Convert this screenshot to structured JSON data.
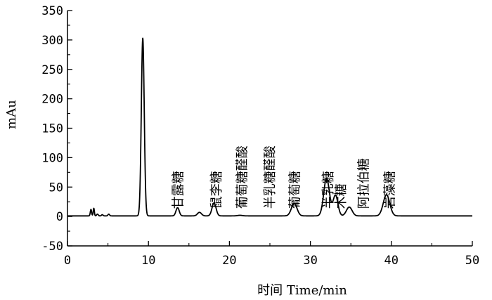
{
  "chart_data": {
    "type": "line",
    "title": "",
    "xlabel": "时间 Time/min",
    "ylabel": "mAu",
    "xlim": [
      0,
      50
    ],
    "ylim": [
      -50,
      350
    ],
    "x_ticks": [
      0,
      10,
      20,
      30,
      40,
      50
    ],
    "y_ticks": [
      -50,
      0,
      50,
      100,
      150,
      200,
      250,
      300,
      350
    ],
    "grid": false,
    "legend": "none",
    "line_color": "#000000",
    "baseline": 1,
    "series": [
      {
        "peaks": [
          {
            "t": 2.9,
            "height": 11,
            "width": 0.08
          },
          {
            "t": 3.25,
            "height": 13,
            "width": 0.07
          },
          {
            "t": 3.7,
            "height": 3,
            "width": 0.1
          },
          {
            "t": 4.3,
            "height": 2,
            "width": 0.1
          },
          {
            "t": 5.1,
            "height": 3,
            "width": 0.1
          },
          {
            "t": 9.3,
            "height": 302,
            "width": 0.18
          },
          {
            "t": 13.6,
            "height": 14,
            "width": 0.2
          },
          {
            "t": 16.3,
            "height": 6,
            "width": 0.25
          },
          {
            "t": 18.1,
            "height": 22,
            "width": 0.25
          },
          {
            "t": 21.3,
            "height": 1,
            "width": 0.3
          },
          {
            "t": 28.0,
            "height": 21,
            "width": 0.35
          },
          {
            "t": 32.0,
            "height": 64,
            "width": 0.35
          },
          {
            "t": 33.1,
            "height": 35,
            "width": 0.3
          },
          {
            "t": 34.8,
            "height": 15,
            "width": 0.35
          },
          {
            "t": 39.4,
            "height": 36,
            "width": 0.4
          }
        ]
      }
    ],
    "annotations": [
      {
        "text": "甘露糖",
        "t": 13.6
      },
      {
        "text": "鼠李糖",
        "t": 18.3
      },
      {
        "text": "葡萄糖醛酸",
        "t": 21.5
      },
      {
        "text": "半乳糖醛酸",
        "t": 24.9
      },
      {
        "text": "葡萄糖",
        "t": 28.0
      },
      {
        "text": "半乳糖",
        "t": 32.1
      },
      {
        "text": "木糖",
        "t": 33.7
      },
      {
        "text": "阿拉伯糖",
        "t": 36.5
      },
      {
        "text": "岩藻糖",
        "t": 39.7
      }
    ]
  }
}
